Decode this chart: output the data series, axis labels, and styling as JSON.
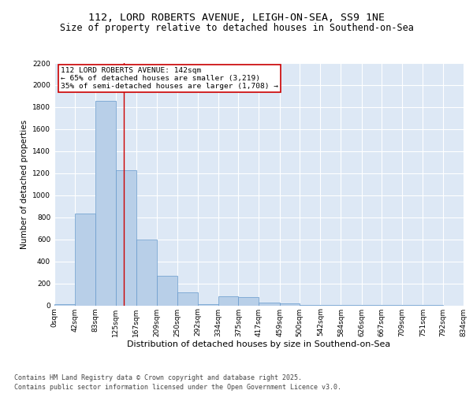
{
  "title_line1": "112, LORD ROBERTS AVENUE, LEIGH-ON-SEA, SS9 1NE",
  "title_line2": "Size of property relative to detached houses in Southend-on-Sea",
  "xlabel": "Distribution of detached houses by size in Southend-on-Sea",
  "ylabel": "Number of detached properties",
  "bin_edges": [
    0,
    42,
    83,
    125,
    167,
    209,
    250,
    292,
    334,
    375,
    417,
    459,
    500,
    542,
    584,
    626,
    667,
    709,
    751,
    792,
    834
  ],
  "bar_heights": [
    10,
    830,
    1855,
    1230,
    600,
    265,
    120,
    10,
    85,
    75,
    25,
    18,
    5,
    5,
    5,
    5,
    5,
    5,
    5,
    0
  ],
  "bar_color": "#b8cfe8",
  "bar_edge_color": "#6699cc",
  "vline_x": 142,
  "vline_color": "#cc0000",
  "annotation_text": "112 LORD ROBERTS AVENUE: 142sqm\n← 65% of detached houses are smaller (3,219)\n35% of semi-detached houses are larger (1,708) →",
  "annotation_box_color": "#ffffff",
  "annotation_box_edge_color": "#cc0000",
  "ylim": [
    0,
    2200
  ],
  "yticks": [
    0,
    200,
    400,
    600,
    800,
    1000,
    1200,
    1400,
    1600,
    1800,
    2000,
    2200
  ],
  "background_color": "#dde8f5",
  "grid_color": "#ffffff",
  "footer_line1": "Contains HM Land Registry data © Crown copyright and database right 2025.",
  "footer_line2": "Contains public sector information licensed under the Open Government Licence v3.0.",
  "title_fontsize": 9.5,
  "subtitle_fontsize": 8.5,
  "tick_label_fontsize": 6.5,
  "ylabel_fontsize": 7.5,
  "xlabel_fontsize": 8,
  "annotation_fontsize": 6.8,
  "footer_fontsize": 6.0
}
